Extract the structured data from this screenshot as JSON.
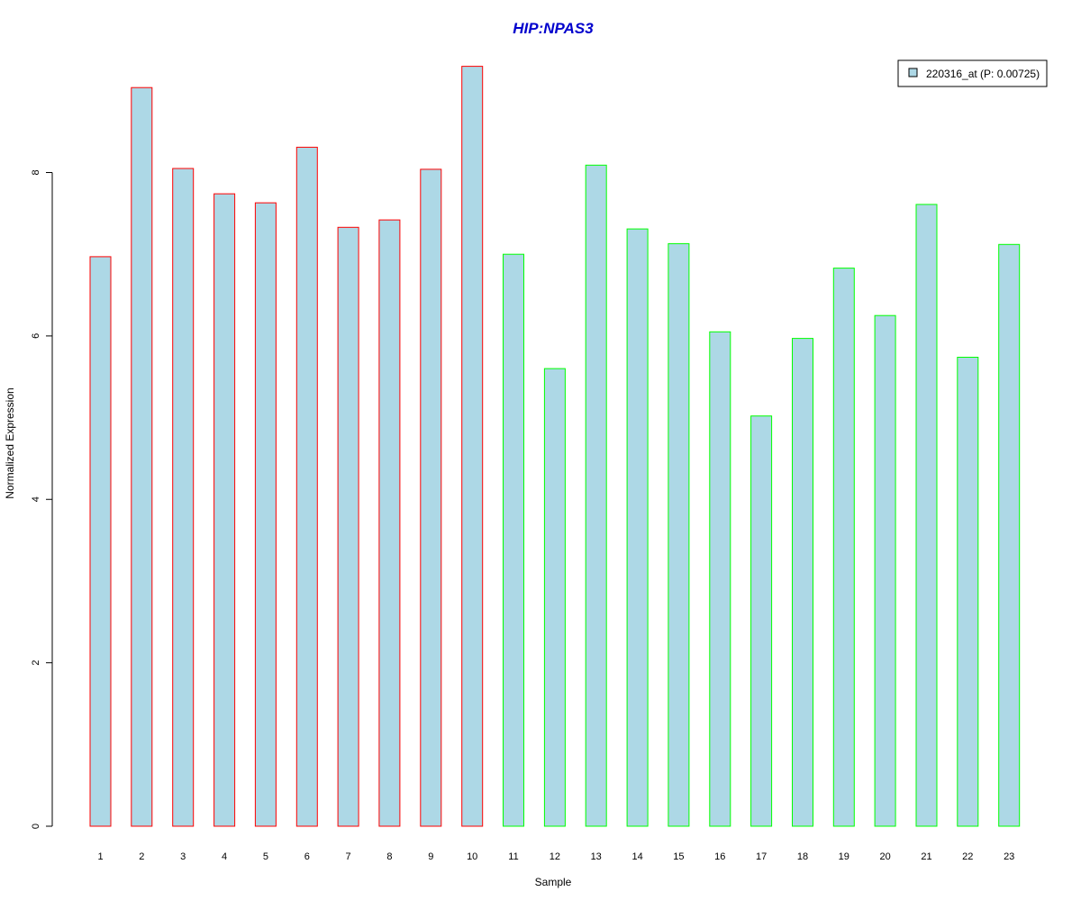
{
  "chart_data": {
    "type": "bar",
    "title": "HIP:NPAS3",
    "xlabel": "Sample",
    "ylabel": "Normalized Expression",
    "categories": [
      "1",
      "2",
      "3",
      "4",
      "5",
      "6",
      "7",
      "8",
      "9",
      "10",
      "11",
      "12",
      "13",
      "14",
      "15",
      "16",
      "17",
      "18",
      "19",
      "20",
      "21",
      "22",
      "23"
    ],
    "values": [
      6.97,
      9.04,
      8.05,
      7.74,
      7.63,
      8.31,
      7.33,
      7.42,
      8.04,
      9.3,
      7.0,
      5.6,
      8.09,
      7.31,
      7.13,
      6.05,
      5.02,
      5.97,
      6.83,
      6.25,
      7.61,
      5.74,
      7.12
    ],
    "groups": [
      "a",
      "a",
      "a",
      "a",
      "a",
      "a",
      "a",
      "a",
      "a",
      "a",
      "b",
      "b",
      "b",
      "b",
      "b",
      "b",
      "b",
      "b",
      "b",
      "b",
      "b",
      "b",
      "b"
    ],
    "group_colors": {
      "a": "#ff0000",
      "b": "#00ff00"
    },
    "bar_fill": "#add8e6",
    "title_color": "#0000cd",
    "yticks": [
      0,
      2,
      4,
      6,
      8
    ],
    "ylim": [
      0,
      9.45
    ],
    "grid": false,
    "legend": {
      "position": "top-right",
      "entries": [
        {
          "label": "220316_at (P: 0.00725)",
          "color": "#add8e6"
        }
      ]
    }
  }
}
